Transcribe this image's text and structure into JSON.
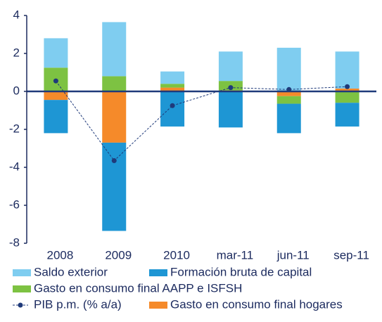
{
  "chart_data": {
    "type": "bar",
    "categories": [
      "2008",
      "2009",
      "2010",
      "mar-11",
      "jun-11",
      "sep-11"
    ],
    "series": [
      {
        "name": "Saldo exterior",
        "color": "#7fcdf0",
        "values": [
          1.55,
          2.85,
          0.65,
          1.55,
          2.3,
          1.95
        ]
      },
      {
        "name": "Formación bruta de capital",
        "color": "#1e96d4",
        "values": [
          -1.75,
          -4.65,
          -1.85,
          -1.9,
          -1.55,
          -1.25
        ]
      },
      {
        "name": "Gasto en consumo final  AAPP e ISFSH",
        "color": "#7dc242",
        "values": [
          1.25,
          0.8,
          0.2,
          0.5,
          -0.4,
          -0.6
        ]
      },
      {
        "name": "PIB p.m. (% a/a)",
        "color": "#1f3a7a",
        "type": "line",
        "values": [
          0.55,
          -3.65,
          -0.75,
          0.2,
          0.1,
          0.25
        ]
      },
      {
        "name": "Gasto en consumo final hogares",
        "color": "#f58a2a",
        "values": [
          -0.45,
          -2.7,
          0.2,
          0.05,
          -0.25,
          0.15
        ]
      }
    ],
    "ylim": [
      -8,
      4
    ],
    "yticks": [
      -8,
      -6,
      -4,
      -2,
      0,
      2,
      4
    ],
    "stacked": true
  }
}
